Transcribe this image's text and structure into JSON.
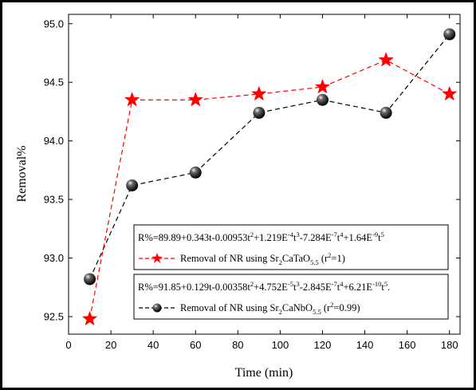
{
  "chart_data": {
    "type": "line",
    "xlabel": "Time (min)",
    "ylabel": "Removal%",
    "xlim": [
      0,
      185
    ],
    "ylim": [
      92.35,
      95.08
    ],
    "xticks": [
      0,
      20,
      40,
      60,
      80,
      100,
      120,
      140,
      160,
      180
    ],
    "yticks": [
      92.5,
      93.0,
      93.5,
      94.0,
      94.5,
      95.0
    ],
    "xtick_labels": [
      "0",
      "20",
      "40",
      "60",
      "80",
      "100",
      "120",
      "140",
      "160",
      "180"
    ],
    "ytick_labels": [
      "92.5",
      "93.0",
      "93.5",
      "94.0",
      "94.5",
      "95.0"
    ],
    "series": [
      {
        "name": "Removal of NR using Sr2CaTaO5.5 (r2=1)",
        "color": "#ff0000",
        "marker": "star",
        "line": "dashed",
        "x": [
          10,
          30,
          60,
          90,
          120,
          150,
          180
        ],
        "y": [
          92.48,
          94.35,
          94.35,
          94.4,
          94.46,
          94.69,
          94.4
        ]
      },
      {
        "name": "Removal of NR using Sr2CaNbO5.5 (r2=0.99)",
        "color": "#000000",
        "marker": "sphere",
        "line": "dashed",
        "x": [
          10,
          30,
          60,
          90,
          120,
          150,
          180
        ],
        "y": [
          92.82,
          93.62,
          93.73,
          94.24,
          94.35,
          94.24,
          94.91
        ]
      }
    ],
    "legend": [
      {
        "equation": {
          "base": "R%=89.89+0.343t-0.00953t",
          "parts": [
            {
              "sup": "2"
            },
            {
              "text": "+1.219E"
            },
            {
              "sup": "-4"
            },
            {
              "text": "t"
            },
            {
              "sup": "3"
            },
            {
              "text": "-7.284E"
            },
            {
              "sup": "-7"
            },
            {
              "text": "t"
            },
            {
              "sup": "4"
            },
            {
              "text": "+1.64E"
            },
            {
              "sup": "-9"
            },
            {
              "text": "t"
            },
            {
              "sup": "5"
            }
          ],
          "tail": ""
        },
        "label_main": "Removal of NR using Sr",
        "label_sub1": "2",
        "label_mid": "CaTaO",
        "label_sub2": "5.5",
        "label_r": "(r",
        "label_r_sup": "2",
        "label_r_end": "=1)"
      },
      {
        "equation": {
          "base": "R%=91.85+0.129t-0.00358t",
          "parts": [
            {
              "sup": "2"
            },
            {
              "text": "+4.752E"
            },
            {
              "sup": "-5"
            },
            {
              "text": "t"
            },
            {
              "sup": "3"
            },
            {
              "text": "-2.845E"
            },
            {
              "sup": "-7"
            },
            {
              "text": "t"
            },
            {
              "sup": "4"
            },
            {
              "text": "+6.21E"
            },
            {
              "sup": "-10"
            },
            {
              "text": "t"
            },
            {
              "sup": "5"
            }
          ],
          "tail": "."
        },
        "label_main": "Removal of NR using Sr",
        "label_sub1": "2",
        "label_mid": "CaNbO",
        "label_sub2": "5.5",
        "label_r": "(r",
        "label_r_sup": "2",
        "label_r_end": "=0.99)"
      }
    ]
  }
}
